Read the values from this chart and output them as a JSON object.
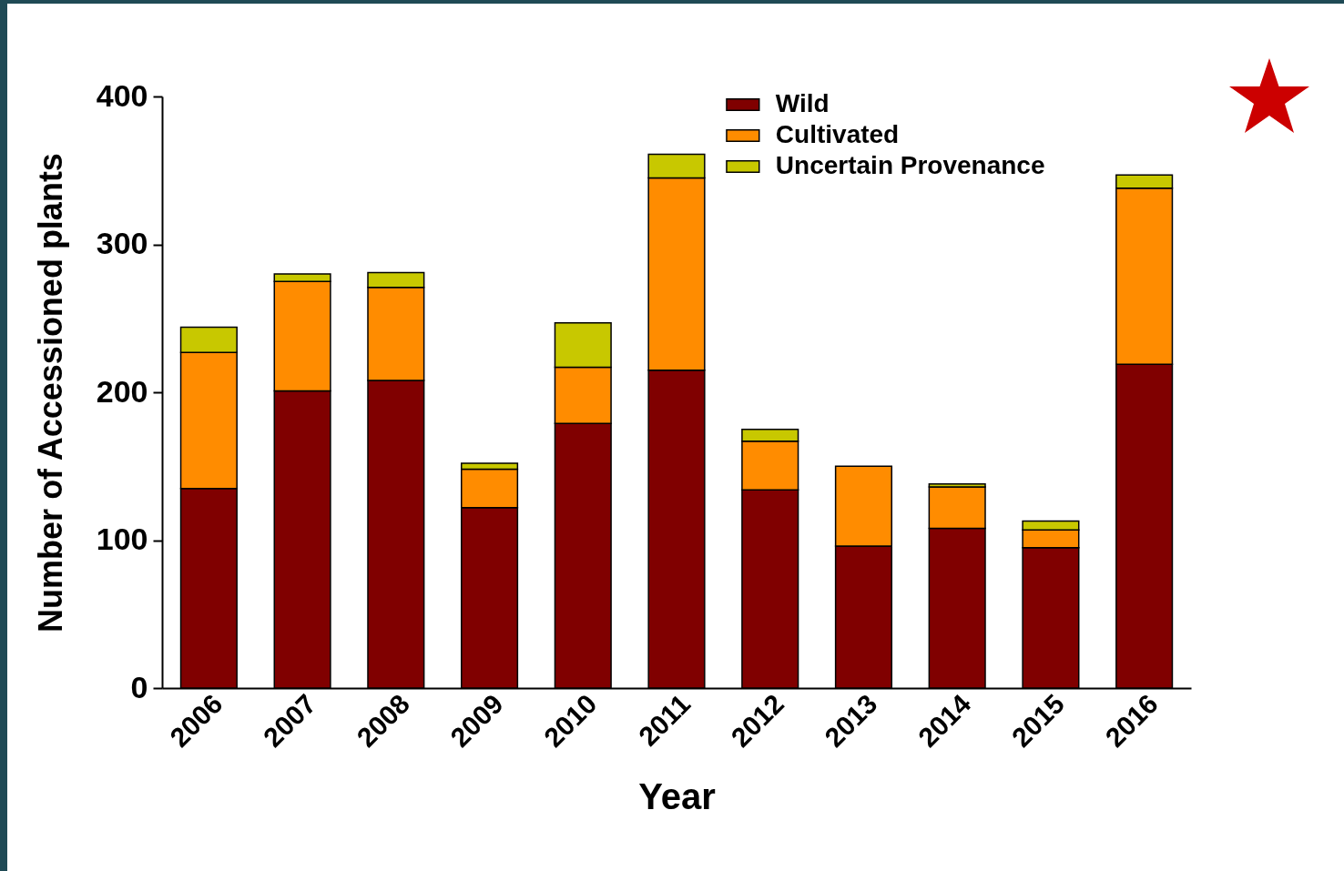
{
  "chart_data": {
    "type": "bar",
    "stacked": true,
    "xlabel": "Year",
    "ylabel": "Number of Accessioned plants",
    "categories": [
      "2006",
      "2007",
      "2008",
      "2009",
      "2010",
      "2011",
      "2012",
      "2013",
      "2014",
      "2015",
      "2016"
    ],
    "series": [
      {
        "name": "Wild",
        "color": "#800000",
        "values": [
          135,
          201,
          208,
          122,
          179,
          215,
          134,
          96,
          108,
          95,
          219
        ]
      },
      {
        "name": "Cultivated",
        "color": "#ff8c00",
        "values": [
          92,
          74,
          63,
          26,
          38,
          130,
          33,
          54,
          28,
          12,
          119
        ]
      },
      {
        "name": "Uncertain Provenance",
        "color": "#c8c800",
        "values": [
          17,
          5,
          10,
          4,
          30,
          16,
          8,
          null,
          2,
          6,
          9
        ]
      }
    ],
    "ylim": [
      0,
      400
    ],
    "yticks": [
      0,
      100,
      200,
      300,
      400
    ],
    "grid": false,
    "legend": "top"
  }
}
